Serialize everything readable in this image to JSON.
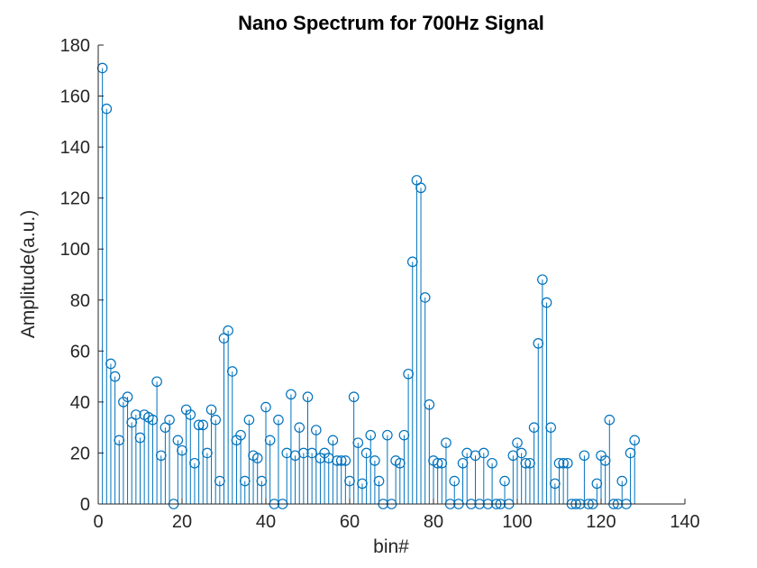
{
  "figure": {
    "background": "#ffffff"
  },
  "chart_data": {
    "type": "stem",
    "title": "Nano Spectrum for 700Hz Signal",
    "xlabel": "bin#",
    "ylabel": "Amplitude(a.u.)",
    "xlim": [
      0,
      140
    ],
    "ylim": [
      0,
      180
    ],
    "xticks": [
      0,
      20,
      40,
      60,
      80,
      100,
      120,
      140
    ],
    "yticks": [
      0,
      20,
      40,
      60,
      80,
      100,
      120,
      140,
      160,
      180
    ],
    "grid": false,
    "legend": null,
    "marker": "open-circle",
    "colors": {
      "stem": "#0072BD",
      "axis": "#262626",
      "title": "#000000"
    },
    "bin_start": 1,
    "values": [
      171,
      155,
      55,
      50,
      25,
      40,
      42,
      32,
      35,
      26,
      35,
      34,
      33,
      48,
      19,
      30,
      33,
      0,
      25,
      21,
      37,
      35,
      16,
      31,
      31,
      20,
      37,
      33,
      9,
      65,
      68,
      52,
      25,
      27,
      9,
      33,
      19,
      18,
      9,
      38,
      25,
      0,
      33,
      0,
      20,
      43,
      19,
      30,
      20,
      42,
      20,
      29,
      18,
      20,
      18,
      25,
      17,
      17,
      17,
      9,
      42,
      24,
      8,
      20,
      27,
      17,
      9,
      0,
      27,
      0,
      17,
      16,
      27,
      51,
      95,
      127,
      124,
      81,
      39,
      17,
      16,
      16,
      24,
      0,
      9,
      0,
      16,
      20,
      0,
      19,
      0,
      20,
      0,
      16,
      0,
      0,
      9,
      0,
      19,
      24,
      20,
      16,
      16,
      30,
      63,
      88,
      79,
      30,
      8,
      16,
      16,
      16,
      0,
      0,
      0,
      19,
      0,
      0,
      8,
      19,
      17,
      33,
      0,
      0,
      9,
      0,
      20,
      25
    ]
  }
}
